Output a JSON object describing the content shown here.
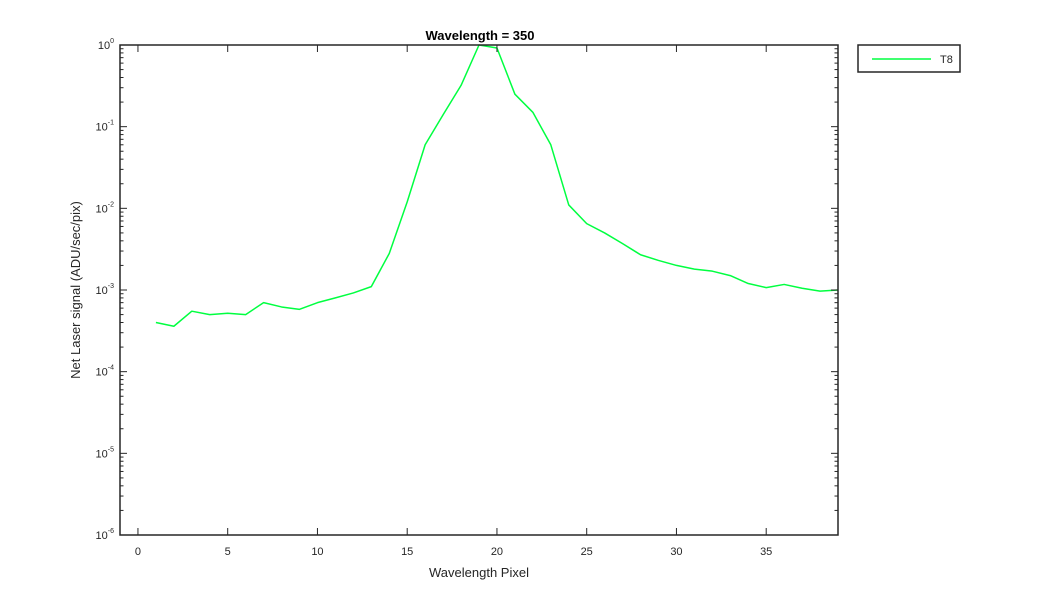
{
  "chart_data": {
    "type": "line",
    "title": "Wavelength = 350",
    "xlabel": "Wavelength Pixel",
    "ylabel": "Net Laser signal  (ADU/sec/pix)",
    "xlim": [
      -1,
      39
    ],
    "ylim": [
      1e-06,
      1
    ],
    "yscale": "log",
    "x_ticks": [
      0,
      5,
      10,
      15,
      20,
      25,
      30,
      35
    ],
    "y_ticks": [
      {
        "value": 1e-06,
        "base": "10",
        "exp": "-6"
      },
      {
        "value": 1e-05,
        "base": "10",
        "exp": "-5"
      },
      {
        "value": 0.0001,
        "base": "10",
        "exp": "-4"
      },
      {
        "value": 0.001,
        "base": "10",
        "exp": "-3"
      },
      {
        "value": 0.01,
        "base": "10",
        "exp": "-2"
      },
      {
        "value": 0.1,
        "base": "10",
        "exp": "-1"
      },
      {
        "value": 1,
        "base": "10",
        "exp": "0"
      }
    ],
    "grid": false,
    "legend": "outside-top-right",
    "series": [
      {
        "name": "T8",
        "color": "#00ff40",
        "x": [
          1,
          2,
          3,
          4,
          5,
          6,
          7,
          8,
          9,
          10,
          11,
          12,
          13,
          14,
          15,
          16,
          17,
          18,
          19,
          20,
          21,
          22,
          23,
          24,
          25,
          26,
          27,
          28,
          29,
          30,
          31,
          32,
          33,
          34,
          35,
          36,
          37,
          38,
          39
        ],
        "y": [
          0.0004,
          0.00036,
          0.00055,
          0.0005,
          0.00052,
          0.0005,
          0.0007,
          0.00062,
          0.00058,
          0.0007,
          0.0008,
          0.00092,
          0.0011,
          0.0028,
          0.012,
          0.06,
          0.14,
          0.32,
          1.0,
          0.92,
          0.25,
          0.15,
          0.06,
          0.011,
          0.0065,
          0.005,
          0.0037,
          0.0027,
          0.0023,
          0.002,
          0.0018,
          0.0017,
          0.0015,
          0.0012,
          0.00107,
          0.00117,
          0.00105,
          0.00097,
          0.001
        ]
      }
    ]
  }
}
